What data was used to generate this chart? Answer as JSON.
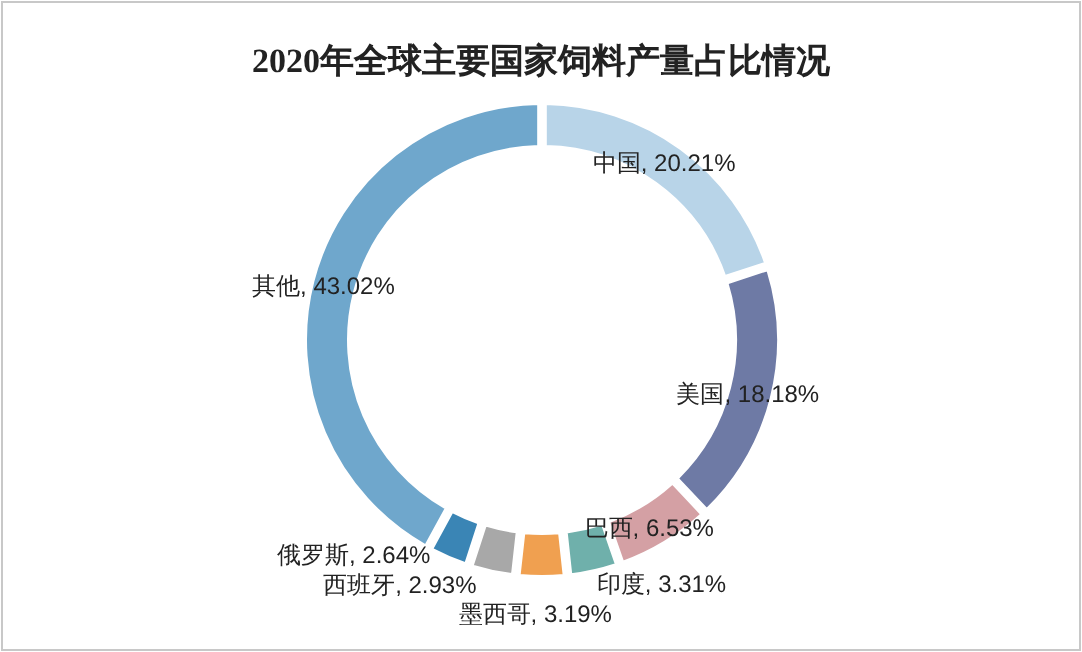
{
  "chart_data": {
    "type": "donut",
    "title": "2020年全球主要国家饲料产量占比情况",
    "categories": [
      "中国",
      "美国",
      "巴西",
      "印度",
      "墨西哥",
      "西班牙",
      "俄罗斯",
      "其他"
    ],
    "values": [
      20.21,
      18.18,
      6.53,
      3.31,
      3.19,
      2.93,
      2.64,
      43.02
    ],
    "colors": [
      "#b8d4e8",
      "#6e7aa5",
      "#d4a0a4",
      "#6fb0ab",
      "#f0a050",
      "#a8a8a8",
      "#3a85b5",
      "#6fa7cc"
    ],
    "value_labels": [
      ", 20.21%",
      ", 18.18%",
      ", 6.53%",
      ", 3.31%",
      ", 3.19%",
      ", 2.93%",
      ", 2.64%",
      ", 43.02%"
    ]
  }
}
